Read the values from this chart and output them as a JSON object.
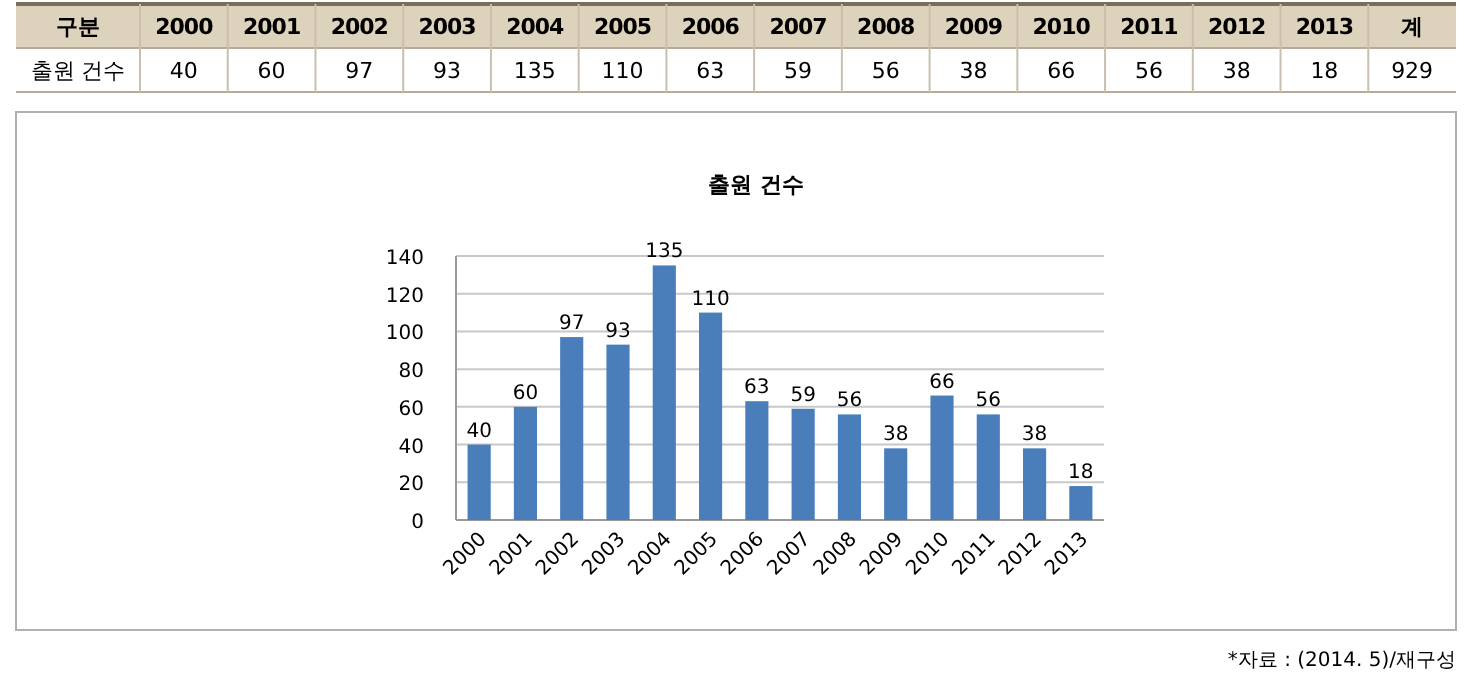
{
  "chart_data": {
    "type": "bar",
    "title": "출원 건수",
    "categories": [
      "2000",
      "2001",
      "2002",
      "2003",
      "2004",
      "2005",
      "2006",
      "2007",
      "2008",
      "2009",
      "2010",
      "2011",
      "2012",
      "2013"
    ],
    "values": [
      40,
      60,
      97,
      93,
      135,
      110,
      63,
      59,
      56,
      38,
      66,
      56,
      38,
      18
    ],
    "color": "#4a7ebb",
    "ylim": [
      0,
      140
    ],
    "yticks": [
      0,
      20,
      40,
      60,
      80,
      100,
      120,
      140
    ],
    "grid": "y",
    "data_labels": true,
    "annotations": [
      "구분",
      "출원 건수",
      "계",
      "929",
      "*자료 : (2014. 5)/재구성",
      "40",
      "60",
      "97",
      "93",
      "135",
      "110",
      "63",
      "59",
      "56",
      "38",
      "66",
      "56",
      "38",
      "18"
    ]
  }
}
